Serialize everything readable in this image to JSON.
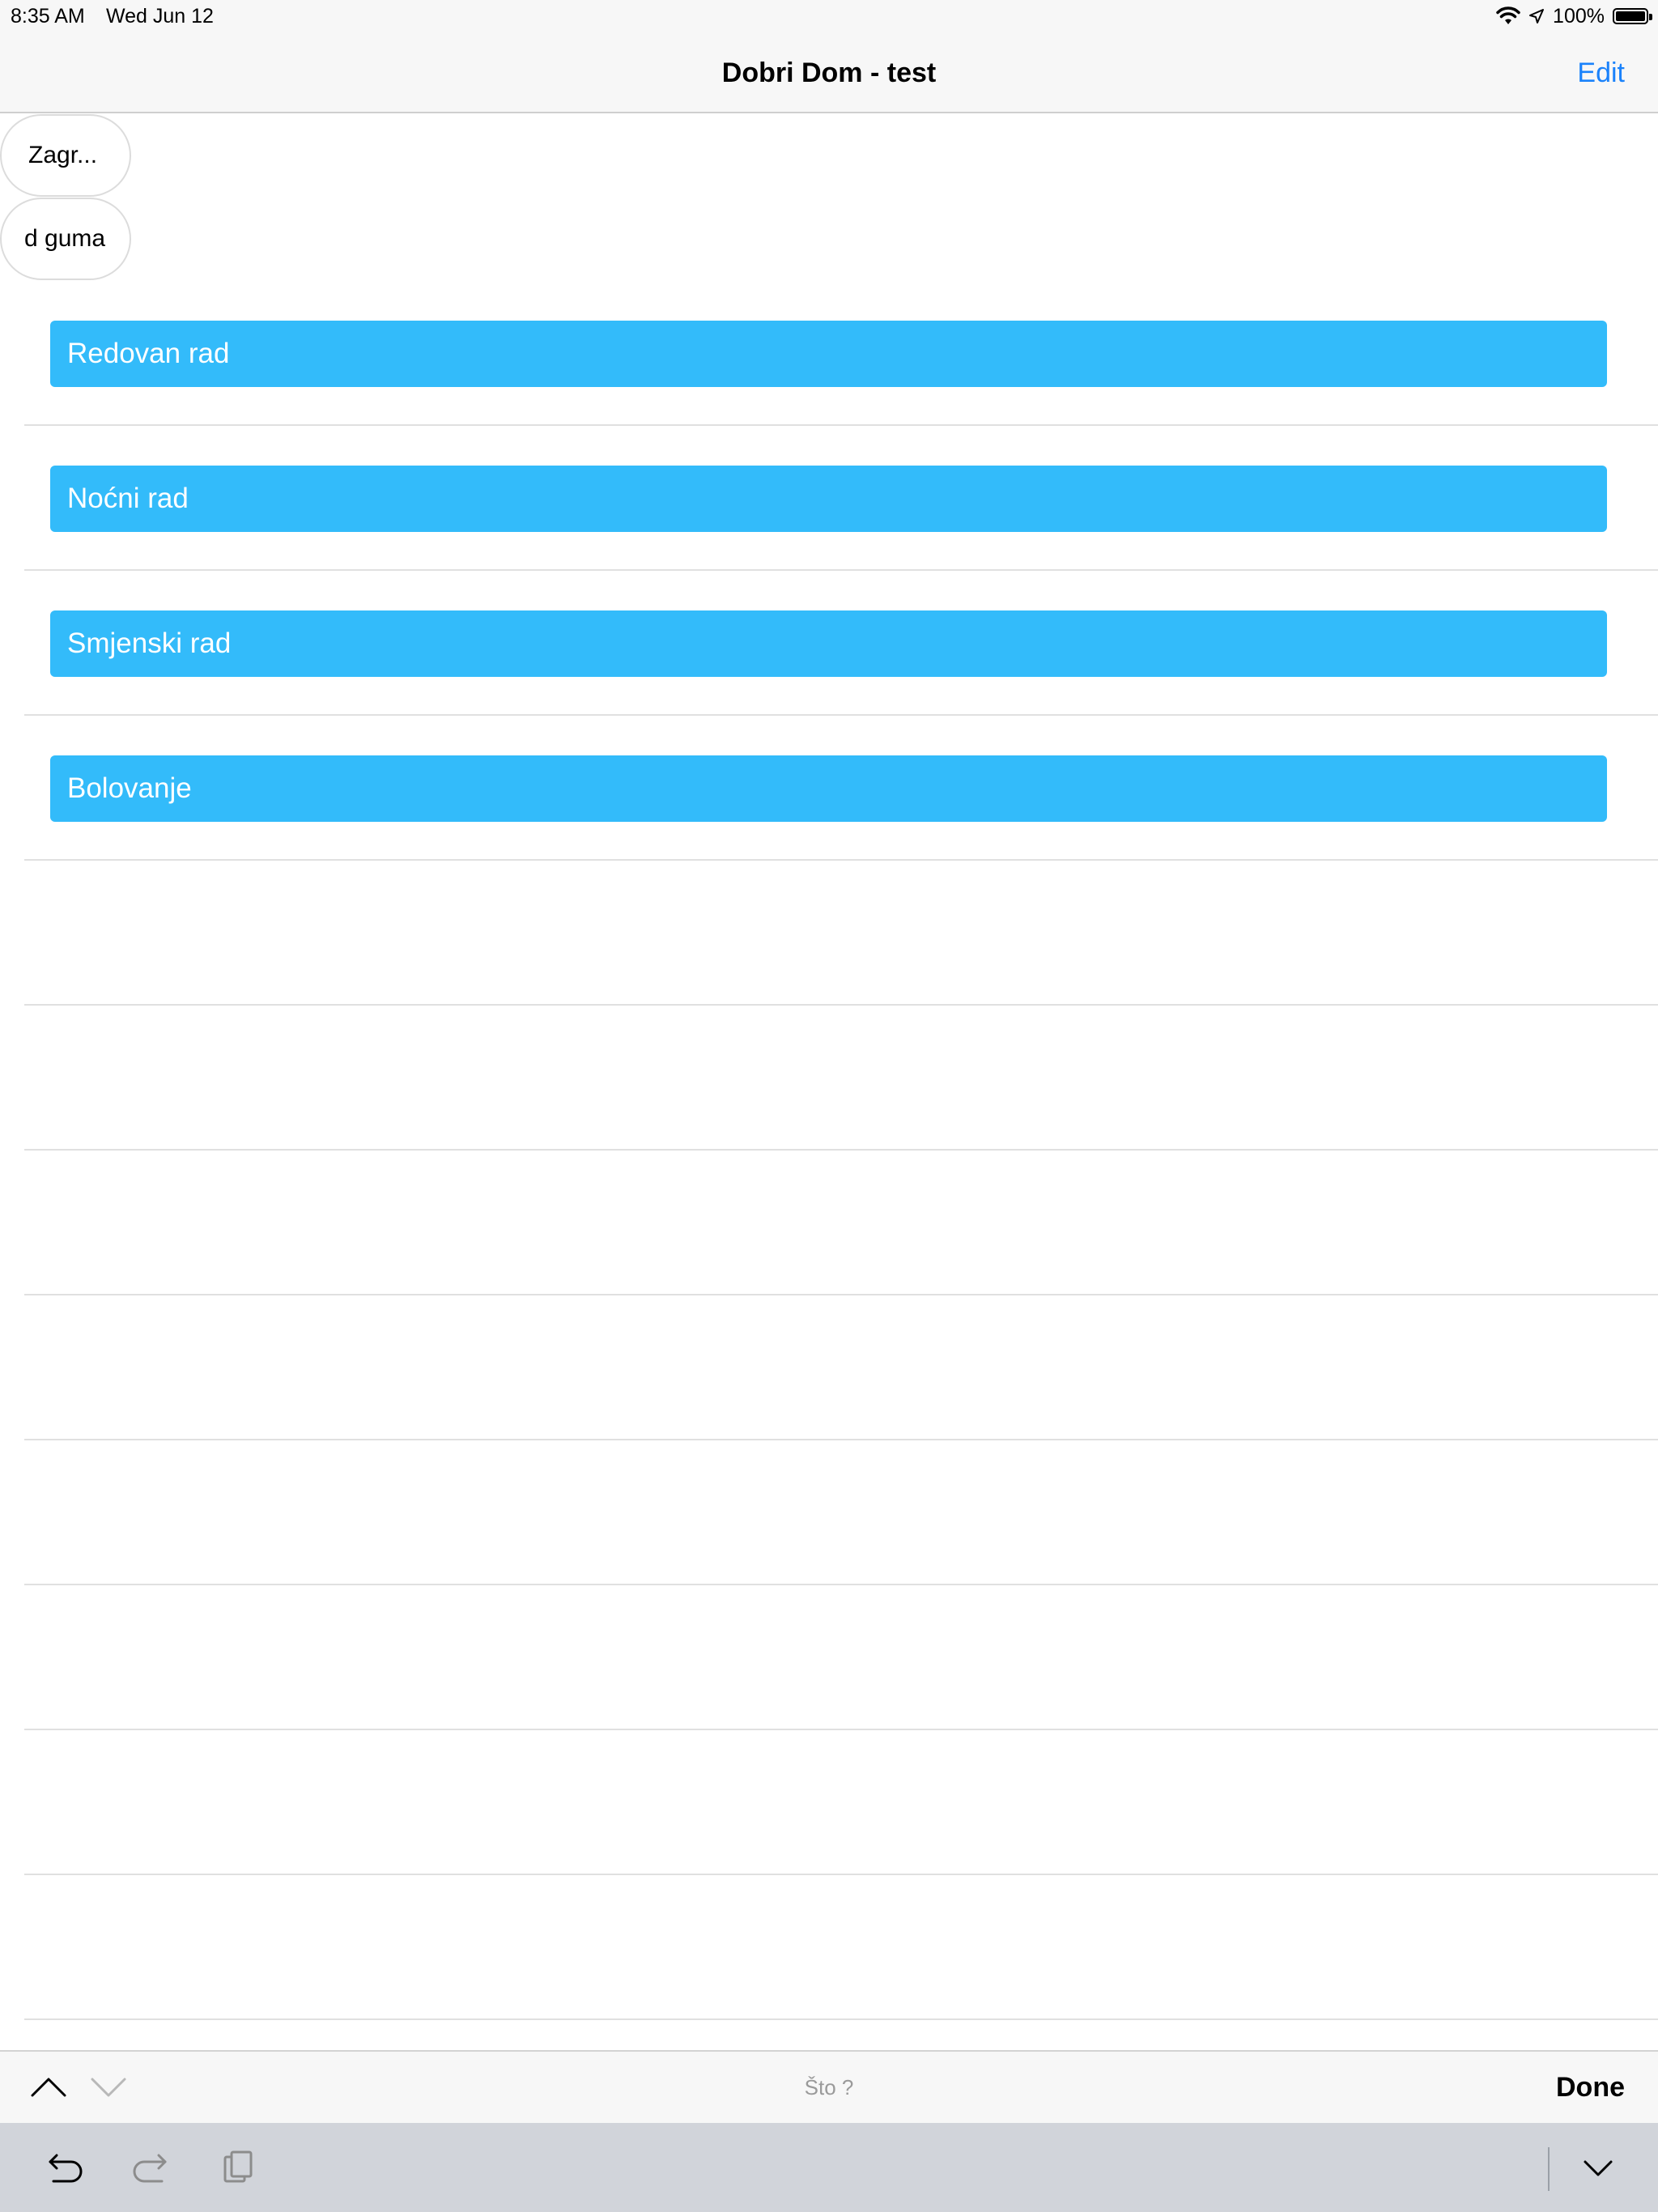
{
  "status_bar": {
    "time": "8:35 AM",
    "date": "Wed Jun 12",
    "battery": "100%"
  },
  "nav": {
    "title": "Dobri Dom - test",
    "edit_label": "Edit"
  },
  "pills": [
    {
      "label": "Zagr..."
    },
    {
      "label": "d guma"
    }
  ],
  "list": {
    "items": [
      {
        "label": "Redovan rad"
      },
      {
        "label": "Noćni rad"
      },
      {
        "label": "Smjenski rad"
      },
      {
        "label": "Bolovanje"
      }
    ]
  },
  "accessory": {
    "prompt": "Što ?",
    "done_label": "Done"
  },
  "colors": {
    "chip": "#33bbfa",
    "accent": "#1a82fb"
  }
}
